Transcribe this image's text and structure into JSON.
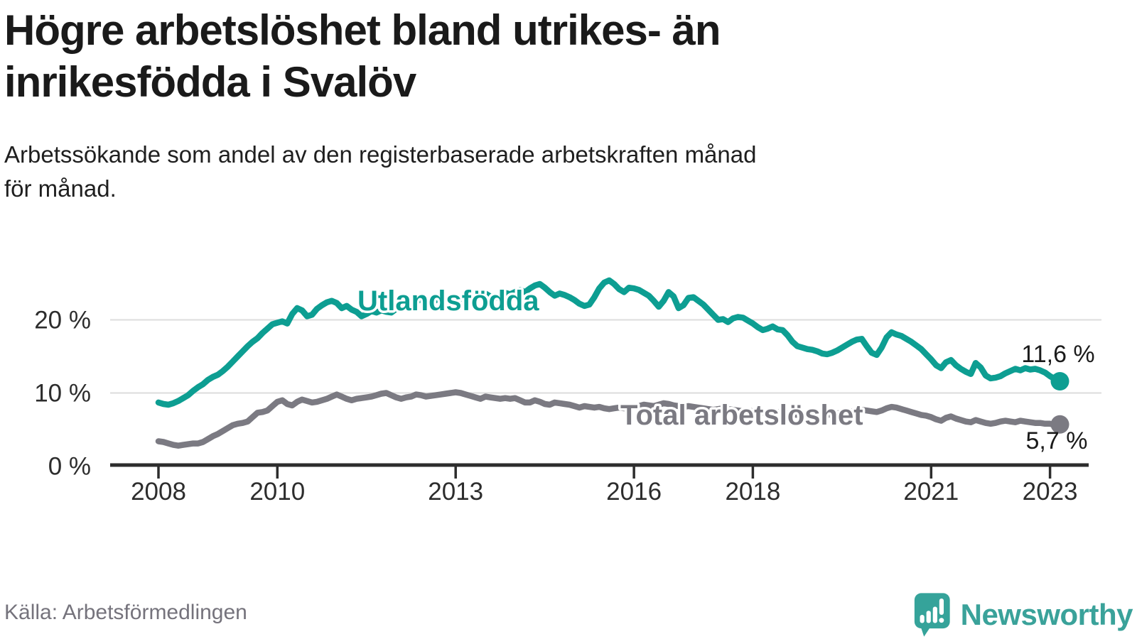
{
  "header": {
    "title_lines": [
      "Högre arbetslöshet bland utrikes- än",
      "inrikesfödda i Svalöv"
    ],
    "subtitle_lines": [
      "Arbetssökande som andel av den registerbaserade arbetskraften månad",
      "för månad."
    ]
  },
  "footer": {
    "source": "Källa: Arbetsförmedlingen",
    "logo_text": "Newsworthy",
    "logo_icon": "chart-speech-bubble-icon"
  },
  "colors": {
    "foreign_born_line": "#0d9e92",
    "total_line": "#7b7a82",
    "title_text": "#1a1a1a",
    "axis": "#2d2d2d",
    "gridline": "#dcdcdc",
    "source_text": "#75737c",
    "logo_teal": "#35a39a"
  },
  "chart_data": {
    "type": "line",
    "unit": "percent",
    "frequency": "monthly",
    "x_start": "2008-01",
    "x_end": "2023-03",
    "ylim": [
      0,
      27
    ],
    "grid": "horizontal",
    "y_ticks": [
      {
        "value": 20,
        "label": "20 %"
      },
      {
        "value": 10,
        "label": "10 %"
      },
      {
        "value": 0,
        "label": "0 %"
      }
    ],
    "x_ticks": [
      {
        "month_index": 0,
        "label": "2008"
      },
      {
        "month_index": 24,
        "label": "2010"
      },
      {
        "month_index": 60,
        "label": "2013"
      },
      {
        "month_index": 96,
        "label": "2016"
      },
      {
        "month_index": 120,
        "label": "2018"
      },
      {
        "month_index": 156,
        "label": "2021"
      },
      {
        "month_index": 180,
        "label": "2023"
      }
    ],
    "series": [
      {
        "name": "Utlandsfödda",
        "color": "#0d9e92",
        "end_value_label": "11,6 %",
        "values": [
          8.7,
          8.5,
          8.4,
          8.6,
          8.9,
          9.3,
          9.7,
          10.3,
          10.8,
          11.2,
          11.8,
          12.2,
          12.5,
          13.0,
          13.6,
          14.3,
          15.0,
          15.7,
          16.4,
          17.0,
          17.5,
          18.2,
          18.8,
          19.4,
          19.6,
          19.8,
          19.5,
          20.8,
          21.6,
          21.3,
          20.5,
          20.7,
          21.5,
          22.0,
          22.4,
          22.6,
          22.3,
          21.6,
          21.9,
          21.4,
          21.1,
          20.5,
          20.8,
          21.2,
          21.0,
          21.3,
          21.1,
          21.0,
          21.5,
          22.0,
          22.4,
          22.1,
          22.5,
          22.8,
          22.5,
          22.3,
          22.7,
          23.0,
          22.8,
          23.0,
          23.2,
          22.9,
          23.4,
          23.1,
          22.8,
          23.3,
          23.6,
          23.2,
          23.0,
          23.4,
          23.7,
          23.5,
          23.8,
          24.1,
          23.8,
          24.3,
          24.7,
          24.9,
          24.4,
          23.8,
          23.3,
          23.6,
          23.4,
          23.1,
          22.7,
          22.2,
          21.9,
          22.1,
          23.1,
          24.3,
          25.1,
          25.4,
          24.9,
          24.2,
          23.8,
          24.4,
          24.3,
          24.1,
          23.7,
          23.3,
          22.6,
          21.8,
          22.6,
          23.8,
          23.2,
          21.6,
          22.0,
          23.0,
          23.1,
          22.6,
          22.1,
          21.4,
          20.7,
          20.0,
          20.1,
          19.7,
          20.2,
          20.4,
          20.3,
          19.9,
          19.5,
          19.0,
          18.6,
          18.8,
          19.1,
          18.7,
          18.6,
          17.9,
          17.0,
          16.4,
          16.2,
          16.0,
          15.9,
          15.7,
          15.4,
          15.3,
          15.5,
          15.8,
          16.2,
          16.6,
          17.0,
          17.3,
          17.4,
          16.4,
          15.5,
          15.2,
          16.2,
          17.6,
          18.3,
          18.0,
          17.8,
          17.4,
          17.0,
          16.5,
          16.0,
          15.3,
          14.6,
          13.8,
          13.4,
          14.2,
          14.5,
          13.8,
          13.3,
          12.9,
          12.6,
          14.1,
          13.5,
          12.4,
          12.0,
          12.1,
          12.3,
          12.7,
          13.0,
          13.3,
          13.1,
          13.4,
          13.2,
          13.3,
          13.1,
          12.8,
          12.3,
          11.9,
          11.6
        ]
      },
      {
        "name": "Total arbetslöshet",
        "color": "#7b7a82",
        "end_value_label": "5,7 %",
        "values": [
          3.4,
          3.3,
          3.1,
          2.9,
          2.8,
          2.9,
          3.0,
          3.1,
          3.1,
          3.3,
          3.7,
          4.1,
          4.4,
          4.8,
          5.2,
          5.6,
          5.8,
          5.9,
          6.1,
          6.7,
          7.3,
          7.4,
          7.6,
          8.2,
          8.8,
          9.0,
          8.5,
          8.3,
          8.8,
          9.1,
          8.9,
          8.7,
          8.8,
          9.0,
          9.2,
          9.5,
          9.8,
          9.5,
          9.2,
          9.0,
          9.2,
          9.3,
          9.4,
          9.5,
          9.7,
          9.9,
          10.0,
          9.7,
          9.4,
          9.2,
          9.4,
          9.5,
          9.8,
          9.7,
          9.5,
          9.6,
          9.7,
          9.8,
          9.9,
          10.0,
          10.1,
          10.0,
          9.8,
          9.6,
          9.4,
          9.2,
          9.5,
          9.4,
          9.3,
          9.2,
          9.3,
          9.2,
          9.3,
          9.0,
          8.7,
          8.7,
          9.0,
          8.8,
          8.5,
          8.4,
          8.7,
          8.6,
          8.5,
          8.4,
          8.2,
          8.0,
          8.2,
          8.1,
          8.0,
          8.1,
          7.9,
          7.8,
          7.9,
          8.0,
          7.9,
          8.0,
          8.0,
          8.2,
          8.4,
          8.3,
          8.2,
          8.4,
          8.6,
          8.5,
          8.3,
          8.2,
          8.1,
          8.2,
          8.1,
          8.0,
          7.9,
          7.8,
          7.7,
          7.8,
          7.9,
          7.8,
          7.7,
          7.6,
          7.5,
          7.6,
          7.5,
          7.4,
          7.3,
          7.4,
          7.5,
          7.4,
          7.3,
          7.2,
          7.1,
          7.0,
          7.1,
          7.2,
          7.1,
          7.0,
          6.9,
          7.0,
          7.1,
          7.2,
          7.3,
          7.4,
          7.5,
          7.6,
          7.7,
          7.6,
          7.5,
          7.4,
          7.6,
          7.9,
          8.1,
          8.0,
          7.8,
          7.6,
          7.4,
          7.2,
          7.0,
          6.9,
          6.7,
          6.4,
          6.2,
          6.6,
          6.8,
          6.5,
          6.3,
          6.1,
          6.0,
          6.3,
          6.1,
          5.9,
          5.8,
          5.9,
          6.1,
          6.2,
          6.1,
          6.0,
          6.2,
          6.1,
          6.0,
          5.9,
          5.9,
          5.8,
          5.8,
          5.6,
          5.7
        ]
      }
    ]
  }
}
